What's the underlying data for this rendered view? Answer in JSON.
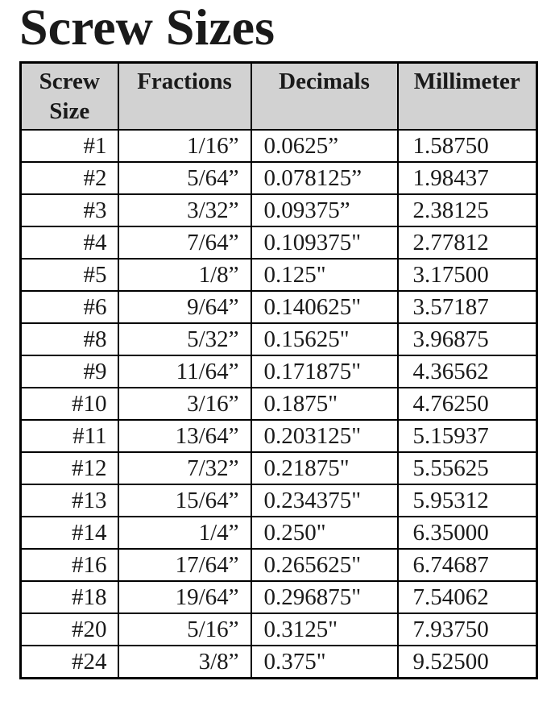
{
  "page": {
    "title": "Screw Sizes"
  },
  "colors": {
    "page_bg": "#ffffff",
    "header_bg": "#d2d2d2",
    "border": "#000000",
    "text": "#1a1a1a"
  },
  "table": {
    "headers": [
      "Screw Size",
      "Fractions",
      "Decimals",
      "Millimeter"
    ],
    "rows": [
      [
        "#1",
        "1/16”",
        "0.0625”",
        "1.58750"
      ],
      [
        "#2",
        "5/64”",
        "0.078125”",
        "1.98437"
      ],
      [
        "#3",
        "3/32”",
        "0.09375”",
        "2.38125"
      ],
      [
        "#4",
        "7/64”",
        "0.109375\"",
        "2.77812"
      ],
      [
        "#5",
        "1/8”",
        "0.125\"",
        "3.17500"
      ],
      [
        "#6",
        "9/64”",
        "0.140625\"",
        "3.57187"
      ],
      [
        "#8",
        "5/32”",
        "0.15625\"",
        "3.96875"
      ],
      [
        "#9",
        "11/64”",
        "0.171875\"",
        "4.36562"
      ],
      [
        "#10",
        "3/16”",
        "0.1875\"",
        "4.76250"
      ],
      [
        "#11",
        "13/64”",
        "0.203125\"",
        "5.15937"
      ],
      [
        "#12",
        "7/32”",
        "0.21875\"",
        "5.55625"
      ],
      [
        "#13",
        "15/64”",
        "0.234375\"",
        "5.95312"
      ],
      [
        "#14",
        "1/4”",
        "0.250\"",
        "6.35000"
      ],
      [
        "#16",
        "17/64”",
        "0.265625\"",
        "6.74687"
      ],
      [
        "#18",
        "19/64”",
        "0.296875\"",
        "7.54062"
      ],
      [
        "#20",
        "5/16”",
        "0.3125\"",
        "7.93750"
      ],
      [
        "#24",
        "3/8”",
        "0.375\"",
        "9.52500"
      ]
    ]
  }
}
